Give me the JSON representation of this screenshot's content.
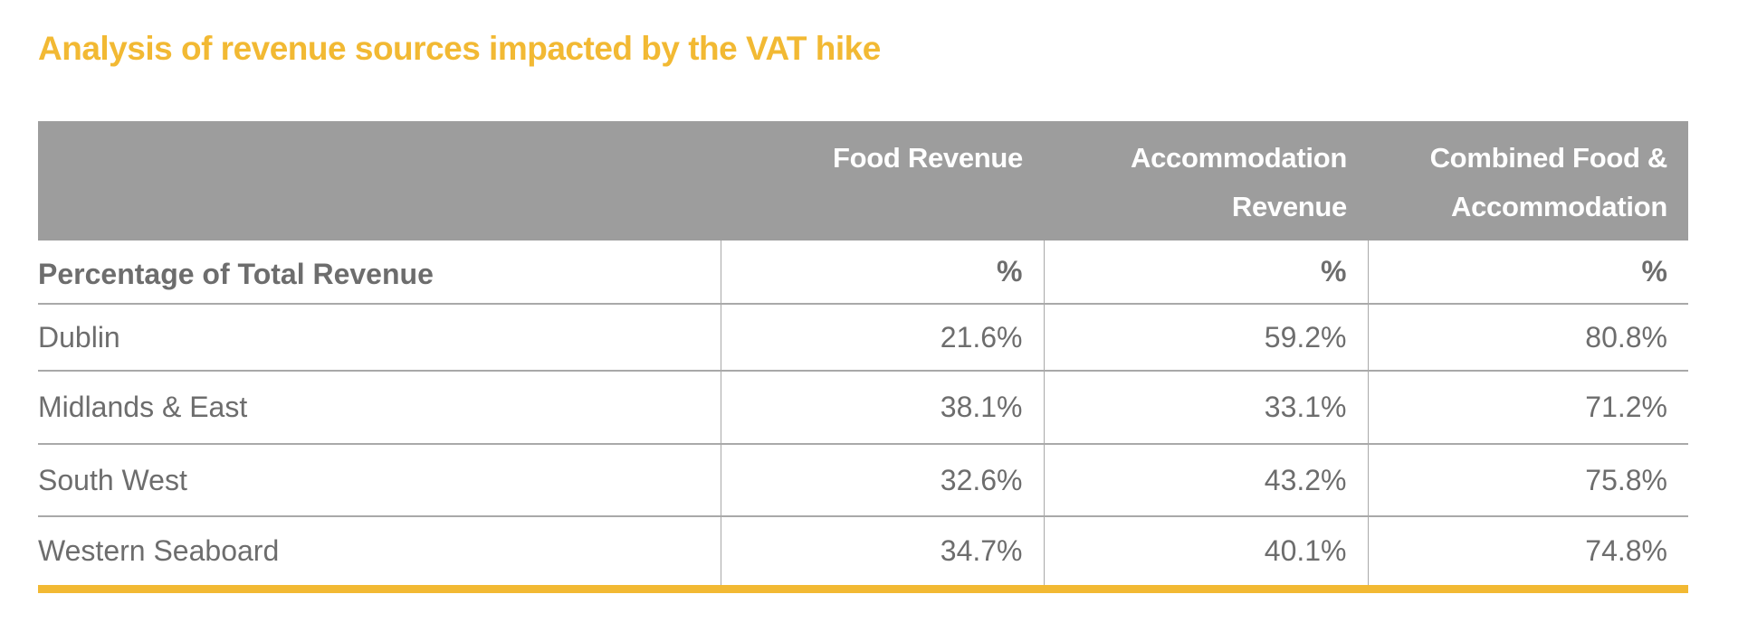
{
  "title": "Analysis of revenue sources impacted by the VAT hike",
  "colors": {
    "accent": "#F2B933",
    "header_bg": "#9d9d9d",
    "text": "#6d6d6d"
  },
  "table": {
    "headers": [
      "",
      "Food Revenue",
      "Accommodation Revenue",
      "Combined Food & Accommodation"
    ],
    "header_lines": [
      [
        ""
      ],
      [
        "Food Revenue"
      ],
      [
        "Accommodation",
        "Revenue"
      ],
      [
        "Combined Food &",
        "Accommodation"
      ]
    ],
    "subheader": {
      "label": "Percentage of Total Revenue",
      "units": [
        "%",
        "%",
        "%"
      ]
    },
    "rows": [
      {
        "region": "Dublin",
        "values": [
          "21.6%",
          "59.2%",
          "80.8%"
        ]
      },
      {
        "region": "Midlands & East",
        "values": [
          "38.1%",
          "33.1%",
          "71.2%"
        ]
      },
      {
        "region": "South West",
        "values": [
          "32.6%",
          "43.2%",
          "75.8%"
        ]
      },
      {
        "region": "Western Seaboard",
        "values": [
          "34.7%",
          "40.1%",
          "74.8%"
        ]
      }
    ]
  }
}
